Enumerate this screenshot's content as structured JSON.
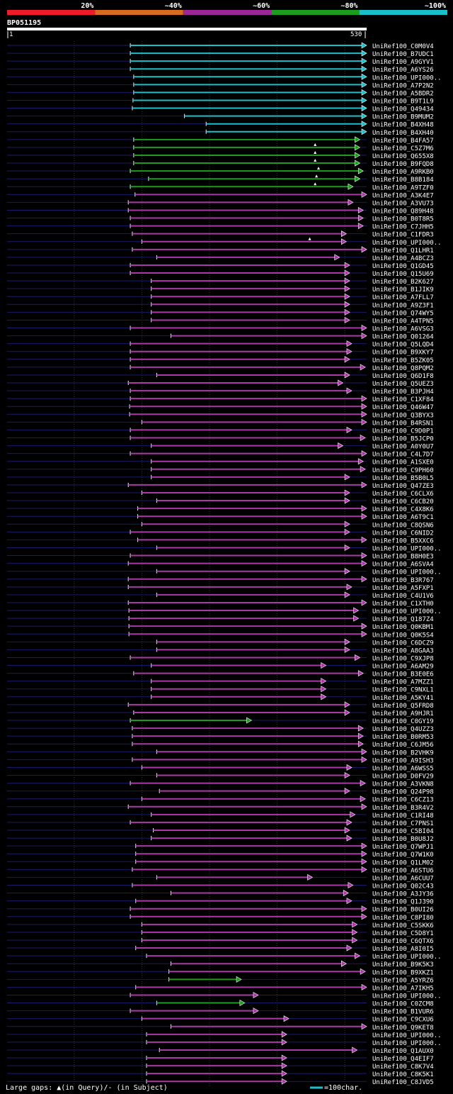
{
  "chart_data": {
    "type": "alignment-overview",
    "title": "BP051195",
    "query_length": 530,
    "scale": {
      "start_label": "1",
      "end_label": "530"
    },
    "identity_legend": [
      {
        "label": "20%",
        "color": "#ee1c2a"
      },
      {
        "label": "~40%",
        "color": "#d86c1e"
      },
      {
        "label": "~60%",
        "color": "#9b2599"
      },
      {
        "label": "~80%",
        "color": "#1c9c1c"
      },
      {
        "label": "~100%",
        "color": "#1bbfc9"
      }
    ],
    "gridlines": [
      100,
      200,
      300,
      400,
      500
    ],
    "footer": {
      "gaps_text": "Large gaps: ▲(in Query)/- (in Subject)",
      "scale_text": "=100char."
    },
    "colors": {
      "cyan": "#1bbfc9",
      "green": "#1c9c1c",
      "purple": "#aa38a8",
      "query_line": "#1a1a6a",
      "grid": "#333333"
    },
    "hits": [
      {
        "id": "UniRef100_C0M0V4",
        "start": 183,
        "end": 530,
        "identity": "~100%"
      },
      {
        "id": "UniRef100_B7UDC1",
        "start": 183,
        "end": 530,
        "identity": "~100%"
      },
      {
        "id": "UniRef100_A9GYV1",
        "start": 183,
        "end": 530,
        "identity": "~100%"
      },
      {
        "id": "UniRef100_A6YS26",
        "start": 183,
        "end": 530,
        "identity": "~100%"
      },
      {
        "id": "UniRef100_UPI000..",
        "start": 188,
        "end": 530,
        "identity": "~100%"
      },
      {
        "id": "UniRef100_A7P2N2",
        "start": 188,
        "end": 530,
        "identity": "~100%"
      },
      {
        "id": "UniRef100_A5BDR2",
        "start": 188,
        "end": 530,
        "identity": "~100%"
      },
      {
        "id": "UniRef100_B9T1L9",
        "start": 187,
        "end": 530,
        "identity": "~100%"
      },
      {
        "id": "UniRef100_Q49434",
        "start": 186,
        "end": 530,
        "identity": "~100%"
      },
      {
        "id": "UniRef100_B9MUM2",
        "start": 263,
        "end": 530,
        "identity": "~100%"
      },
      {
        "id": "UniRef100_B4XH48",
        "start": 295,
        "end": 530,
        "identity": "~100%"
      },
      {
        "id": "UniRef100_B4XH40",
        "start": 295,
        "end": 530,
        "identity": "~100%"
      },
      {
        "id": "UniRef100_B4FA57",
        "start": 188,
        "end": 520,
        "identity": "~80%"
      },
      {
        "id": "UniRef100_C5Z7M6",
        "start": 188,
        "end": 520,
        "identity": "~80%",
        "gap": 456
      },
      {
        "id": "UniRef100_Q655X8",
        "start": 188,
        "end": 520,
        "identity": "~80%",
        "gap": 456
      },
      {
        "id": "UniRef100_B9FQD8",
        "start": 188,
        "end": 520,
        "identity": "~80%",
        "gap": 456
      },
      {
        "id": "UniRef100_A9RKB0",
        "start": 183,
        "end": 525,
        "identity": "~80%",
        "gap": 461
      },
      {
        "id": "UniRef100_B8B184",
        "start": 210,
        "end": 520,
        "identity": "~80%",
        "gap": 458
      },
      {
        "id": "UniRef100_A9TZF0",
        "start": 183,
        "end": 510,
        "identity": "~80%",
        "gap": 456
      },
      {
        "id": "UniRef100_A3K4E7",
        "start": 190,
        "end": 530,
        "identity": "~60%"
      },
      {
        "id": "UniRef100_A3VU73",
        "start": 180,
        "end": 510,
        "identity": "~60%"
      },
      {
        "id": "UniRef100_Q89H48",
        "start": 180,
        "end": 525,
        "identity": "~60%"
      },
      {
        "id": "UniRef100_B0T8R5",
        "start": 183,
        "end": 525,
        "identity": "~60%"
      },
      {
        "id": "UniRef100_C7JHH5",
        "start": 183,
        "end": 525,
        "identity": "~60%"
      },
      {
        "id": "UniRef100_C1FDR3",
        "start": 186,
        "end": 500,
        "identity": "~60%"
      },
      {
        "id": "UniRef100_UPI000..",
        "start": 200,
        "end": 500,
        "identity": "~60%",
        "gap": 448
      },
      {
        "id": "UniRef100_Q1LHR1",
        "start": 186,
        "end": 530,
        "identity": "~60%"
      },
      {
        "id": "UniRef100_A4BCZ3",
        "start": 222,
        "end": 490,
        "identity": "~60%"
      },
      {
        "id": "UniRef100_Q1GD45",
        "start": 183,
        "end": 505,
        "identity": "~60%"
      },
      {
        "id": "UniRef100_Q15U69",
        "start": 183,
        "end": 505,
        "identity": "~60%"
      },
      {
        "id": "UniRef100_B2K627",
        "start": 214,
        "end": 505,
        "identity": "~60%"
      },
      {
        "id": "UniRef100_B1JIK9",
        "start": 214,
        "end": 505,
        "identity": "~60%"
      },
      {
        "id": "UniRef100_A7FLL7",
        "start": 214,
        "end": 505,
        "identity": "~60%"
      },
      {
        "id": "UniRef100_A9Z3F1",
        "start": 214,
        "end": 505,
        "identity": "~60%"
      },
      {
        "id": "UniRef100_Q74WY5",
        "start": 214,
        "end": 505,
        "identity": "~60%"
      },
      {
        "id": "UniRef100_A4TPN5",
        "start": 214,
        "end": 505,
        "identity": "~60%"
      },
      {
        "id": "UniRef100_A6VSG3",
        "start": 183,
        "end": 530,
        "identity": "~60%"
      },
      {
        "id": "UniRef100_Q01264",
        "start": 243,
        "end": 530,
        "identity": "~60%"
      },
      {
        "id": "UniRef100_Q5LQD4",
        "start": 183,
        "end": 508,
        "identity": "~60%"
      },
      {
        "id": "UniRef100_B9XKY7",
        "start": 183,
        "end": 508,
        "identity": "~60%"
      },
      {
        "id": "UniRef100_B5ZK05",
        "start": 183,
        "end": 505,
        "identity": "~60%"
      },
      {
        "id": "UniRef100_Q8PQM2",
        "start": 183,
        "end": 528,
        "identity": "~60%"
      },
      {
        "id": "UniRef100_Q6D1F8",
        "start": 222,
        "end": 505,
        "identity": "~60%"
      },
      {
        "id": "UniRef100_Q5UEZ3",
        "start": 180,
        "end": 495,
        "identity": "~60%"
      },
      {
        "id": "UniRef100_B3PJH4",
        "start": 183,
        "end": 508,
        "identity": "~60%"
      },
      {
        "id": "UniRef100_C1XF84",
        "start": 183,
        "end": 530,
        "identity": "~60%"
      },
      {
        "id": "UniRef100_Q46W47",
        "start": 182,
        "end": 530,
        "identity": "~60%"
      },
      {
        "id": "UniRef100_Q3BYX3",
        "start": 182,
        "end": 530,
        "identity": "~60%"
      },
      {
        "id": "UniRef100_B4RSN1",
        "start": 200,
        "end": 530,
        "identity": "~60%"
      },
      {
        "id": "UniRef100_C9D0P1",
        "start": 183,
        "end": 508,
        "identity": "~60%"
      },
      {
        "id": "UniRef100_B5JCP0",
        "start": 183,
        "end": 528,
        "identity": "~60%"
      },
      {
        "id": "UniRef100_A0Y0U7",
        "start": 214,
        "end": 495,
        "identity": "~60%"
      },
      {
        "id": "UniRef100_C4L7D7",
        "start": 183,
        "end": 530,
        "identity": "~60%"
      },
      {
        "id": "UniRef100_A1SXE0",
        "start": 214,
        "end": 525,
        "identity": "~60%"
      },
      {
        "id": "UniRef100_C9PH60",
        "start": 214,
        "end": 528,
        "identity": "~60%"
      },
      {
        "id": "UniRef100_B5B0L5",
        "start": 214,
        "end": 505,
        "identity": "~60%"
      },
      {
        "id": "UniRef100_Q47ZE3",
        "start": 180,
        "end": 530,
        "identity": "~60%"
      },
      {
        "id": "UniRef100_C6CLX6",
        "start": 200,
        "end": 505,
        "identity": "~60%"
      },
      {
        "id": "UniRef100_C6CB20",
        "start": 222,
        "end": 505,
        "identity": "~60%"
      },
      {
        "id": "UniRef100_C4X8K6",
        "start": 194,
        "end": 530,
        "identity": "~60%"
      },
      {
        "id": "UniRef100_A6T9C1",
        "start": 194,
        "end": 530,
        "identity": "~60%"
      },
      {
        "id": "UniRef100_C8QSN6",
        "start": 200,
        "end": 505,
        "identity": "~60%"
      },
      {
        "id": "UniRef100_C6NID2",
        "start": 183,
        "end": 505,
        "identity": "~60%"
      },
      {
        "id": "UniRef100_B5XXC6",
        "start": 194,
        "end": 530,
        "identity": "~60%"
      },
      {
        "id": "UniRef100_UPI000..",
        "start": 222,
        "end": 505,
        "identity": "~60%"
      },
      {
        "id": "UniRef100_B8H0E3",
        "start": 183,
        "end": 530,
        "identity": "~60%"
      },
      {
        "id": "UniRef100_A6SVA4",
        "start": 180,
        "end": 530,
        "identity": "~60%"
      },
      {
        "id": "UniRef100_UPI000..",
        "start": 222,
        "end": 505,
        "identity": "~60%"
      },
      {
        "id": "UniRef100_B3R767",
        "start": 180,
        "end": 530,
        "identity": "~60%"
      },
      {
        "id": "UniRef100_A5FXP1",
        "start": 180,
        "end": 508,
        "identity": "~60%"
      },
      {
        "id": "UniRef100_C4U1V6",
        "start": 222,
        "end": 505,
        "identity": "~60%"
      },
      {
        "id": "UniRef100_C1XTH0",
        "start": 180,
        "end": 530,
        "identity": "~60%"
      },
      {
        "id": "UniRef100_UPI000..",
        "start": 181,
        "end": 518,
        "identity": "~60%"
      },
      {
        "id": "UniRef100_Q187Z4",
        "start": 181,
        "end": 518,
        "identity": "~60%"
      },
      {
        "id": "UniRef100_Q0KBM1",
        "start": 181,
        "end": 530,
        "identity": "~60%"
      },
      {
        "id": "UniRef100_Q0K5S4",
        "start": 181,
        "end": 530,
        "identity": "~60%"
      },
      {
        "id": "UniRef100_C6DCZ9",
        "start": 222,
        "end": 505,
        "identity": "~60%"
      },
      {
        "id": "UniRef100_A8GAA3",
        "start": 222,
        "end": 505,
        "identity": "~60%"
      },
      {
        "id": "UniRef100_C9XJP8",
        "start": 183,
        "end": 520,
        "identity": "~60%"
      },
      {
        "id": "UniRef100_A6AM29",
        "start": 214,
        "end": 470,
        "identity": "~60%"
      },
      {
        "id": "UniRef100_B3E0E6",
        "start": 188,
        "end": 525,
        "identity": "~60%"
      },
      {
        "id": "UniRef100_A7MZZ1",
        "start": 214,
        "end": 470,
        "identity": "~60%"
      },
      {
        "id": "UniRef100_C9NXL1",
        "start": 214,
        "end": 470,
        "identity": "~60%"
      },
      {
        "id": "UniRef100_A5KY41",
        "start": 214,
        "end": 470,
        "identity": "~60%"
      },
      {
        "id": "UniRef100_Q5FRD8",
        "start": 180,
        "end": 505,
        "identity": "~60%"
      },
      {
        "id": "UniRef100_A9HJR1",
        "start": 188,
        "end": 505,
        "identity": "~60%"
      },
      {
        "id": "UniRef100_C0GY19",
        "start": 183,
        "end": 360,
        "identity": "~80%"
      },
      {
        "id": "UniRef100_Q4UZZ3",
        "start": 186,
        "end": 525,
        "identity": "~60%"
      },
      {
        "id": "UniRef100_B0RM53",
        "start": 186,
        "end": 525,
        "identity": "~60%"
      },
      {
        "id": "UniRef100_C6JM56",
        "start": 186,
        "end": 525,
        "identity": "~60%"
      },
      {
        "id": "UniRef100_B2VHK9",
        "start": 222,
        "end": 530,
        "identity": "~60%"
      },
      {
        "id": "UniRef100_A9ISH3",
        "start": 186,
        "end": 530,
        "identity": "~60%"
      },
      {
        "id": "UniRef100_A6WSS5",
        "start": 200,
        "end": 508,
        "identity": "~60%"
      },
      {
        "id": "UniRef100_D0FV29",
        "start": 222,
        "end": 505,
        "identity": "~60%"
      },
      {
        "id": "UniRef100_A3VKN8",
        "start": 183,
        "end": 528,
        "identity": "~60%"
      },
      {
        "id": "UniRef100_Q24P98",
        "start": 226,
        "end": 505,
        "identity": "~60%"
      },
      {
        "id": "UniRef100_C6CZ13",
        "start": 200,
        "end": 528,
        "identity": "~60%"
      },
      {
        "id": "UniRef100_B3R4V2",
        "start": 180,
        "end": 530,
        "identity": "~60%"
      },
      {
        "id": "UniRef100_C1RI48",
        "start": 214,
        "end": 513,
        "identity": "~60%"
      },
      {
        "id": "UniRef100_C7PNS1",
        "start": 183,
        "end": 508,
        "identity": "~60%"
      },
      {
        "id": "UniRef100_C5BI04",
        "start": 217,
        "end": 505,
        "identity": "~60%"
      },
      {
        "id": "UniRef100_B0U8J2",
        "start": 214,
        "end": 508,
        "identity": "~60%"
      },
      {
        "id": "UniRef100_Q7WPJ1",
        "start": 191,
        "end": 530,
        "identity": "~60%"
      },
      {
        "id": "UniRef100_Q7W1K0",
        "start": 191,
        "end": 530,
        "identity": "~60%"
      },
      {
        "id": "UniRef100_Q1LM02",
        "start": 191,
        "end": 530,
        "identity": "~60%"
      },
      {
        "id": "UniRef100_A6STU6",
        "start": 186,
        "end": 530,
        "identity": "~60%"
      },
      {
        "id": "UniRef100_A6CUU7",
        "start": 222,
        "end": 450,
        "identity": "~60%"
      },
      {
        "id": "UniRef100_Q02C43",
        "start": 186,
        "end": 510,
        "identity": "~60%"
      },
      {
        "id": "UniRef100_A3JY36",
        "start": 243,
        "end": 503,
        "identity": "~60%"
      },
      {
        "id": "UniRef100_Q1J390",
        "start": 191,
        "end": 508,
        "identity": "~60%"
      },
      {
        "id": "UniRef100_B0UI26",
        "start": 183,
        "end": 530,
        "identity": "~60%"
      },
      {
        "id": "UniRef100_C8PI80",
        "start": 183,
        "end": 530,
        "identity": "~60%"
      },
      {
        "id": "UniRef100_C5SKK6",
        "start": 200,
        "end": 516,
        "identity": "~60%"
      },
      {
        "id": "UniRef100_C5D8Y1",
        "start": 200,
        "end": 516,
        "identity": "~60%"
      },
      {
        "id": "UniRef100_C6QTX6",
        "start": 200,
        "end": 516,
        "identity": "~60%"
      },
      {
        "id": "UniRef100_A8I0I5",
        "start": 191,
        "end": 508,
        "identity": "~60%"
      },
      {
        "id": "UniRef100_UPI000..",
        "start": 207,
        "end": 520,
        "identity": "~60%"
      },
      {
        "id": "UniRef100_B9K5K3",
        "start": 243,
        "end": 500,
        "identity": "~60%"
      },
      {
        "id": "UniRef100_B9XKZ1",
        "start": 240,
        "end": 528,
        "identity": "~60%"
      },
      {
        "id": "UniRef100_A5YRZ6",
        "start": 240,
        "end": 345,
        "identity": "~80%"
      },
      {
        "id": "UniRef100_A7IKH5",
        "start": 191,
        "end": 530,
        "identity": "~60%"
      },
      {
        "id": "UniRef100_UPI000..",
        "start": 183,
        "end": 370,
        "identity": "~60%"
      },
      {
        "id": "UniRef100_C0ZCM8",
        "start": 222,
        "end": 350,
        "identity": "~80%"
      },
      {
        "id": "UniRef100_B1VUR6",
        "start": 183,
        "end": 370,
        "identity": "~60%"
      },
      {
        "id": "UniRef100_C9CXU6",
        "start": 200,
        "end": 415,
        "identity": "~60%"
      },
      {
        "id": "UniRef100_Q9KET8",
        "start": 243,
        "end": 530,
        "identity": "~60%"
      },
      {
        "id": "UniRef100_UPI000..",
        "start": 207,
        "end": 412,
        "identity": "~60%"
      },
      {
        "id": "UniRef100_UPI000..",
        "start": 207,
        "end": 412,
        "identity": "~60%"
      },
      {
        "id": "UniRef100_Q1AUX0",
        "start": 226,
        "end": 516,
        "identity": "~60%"
      },
      {
        "id": "UniRef100_Q4EIF7",
        "start": 207,
        "end": 412,
        "identity": "~60%"
      },
      {
        "id": "UniRef100_C8K7V4",
        "start": 207,
        "end": 412,
        "identity": "~60%"
      },
      {
        "id": "UniRef100_C8K5K1",
        "start": 207,
        "end": 412,
        "identity": "~60%"
      },
      {
        "id": "UniRef100_C8JVD5",
        "start": 207,
        "end": 412,
        "identity": "~60%"
      }
    ]
  }
}
